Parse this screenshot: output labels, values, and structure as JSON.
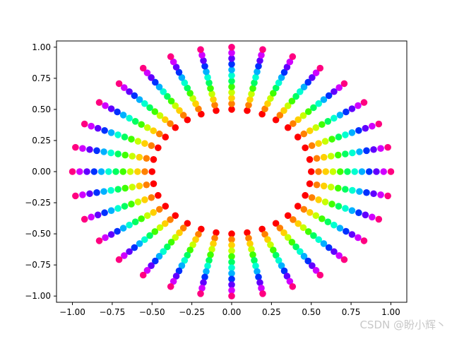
{
  "chart_data": {
    "type": "scatter",
    "title": "",
    "xlabel": "",
    "ylabel": "",
    "xlim": [
      -1.1,
      1.1
    ],
    "ylim": [
      -1.05,
      1.05
    ],
    "x_ticks": [
      -1.0,
      -0.75,
      -0.5,
      -0.25,
      0.0,
      0.25,
      0.5,
      0.75,
      1.0
    ],
    "x_tick_labels": [
      "−1.00",
      "−0.75",
      "−0.50",
      "−0.25",
      "0.00",
      "0.25",
      "0.50",
      "0.75",
      "1.00"
    ],
    "y_ticks": [
      1.0,
      0.75,
      0.5,
      0.25,
      0.0,
      -0.25,
      -0.5,
      -0.75,
      -1.0
    ],
    "y_tick_labels": [
      "1.00",
      "0.75",
      "0.50",
      "0.25",
      "0.00",
      "−0.25",
      "−0.50",
      "−0.75",
      "−1.00"
    ],
    "grid": false,
    "legend": "none",
    "description": "Points arranged in 32 radial rays; along each ray radius goes from 0.5 to 1.0, color follows hsv colormap (red at inner radius, through yellow, green, cyan, blue, magenta to pink at outer radius)",
    "series": [
      {
        "rays": 32,
        "points_per_ray": 12,
        "r_min": 0.5,
        "r_max": 1.0,
        "ray_angle_step_deg": 11.25,
        "ray_angle_offset_deg": 0,
        "colormap": "hsv",
        "colors": [
          "#ff0000",
          "#ff8000",
          "#ffd000",
          "#c8ff00",
          "#40ff00",
          "#00ff60",
          "#00ffd0",
          "#00b0ff",
          "#0030ff",
          "#6000ff",
          "#d000ff",
          "#ff0080"
        ]
      }
    ]
  },
  "watermark": "CSDN @盼小辉丶"
}
